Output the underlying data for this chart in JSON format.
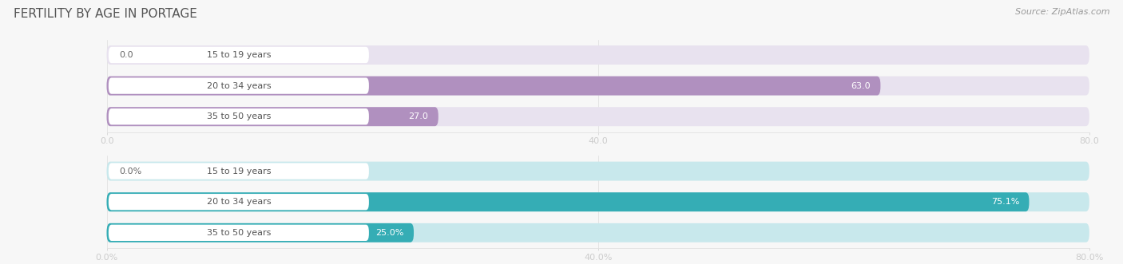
{
  "title": "FERTILITY BY AGE IN PORTAGE",
  "source": "Source: ZipAtlas.com",
  "top_chart": {
    "categories": [
      "15 to 19 years",
      "20 to 34 years",
      "35 to 50 years"
    ],
    "values": [
      0.0,
      63.0,
      27.0
    ],
    "xlim": [
      0,
      80
    ],
    "xticks": [
      0.0,
      40.0,
      80.0
    ],
    "xtick_labels": [
      "0.0",
      "40.0",
      "80.0"
    ],
    "bar_color": "#b090bf",
    "bar_bg_color": "#e8e2ef",
    "label_pill_color": "#ffffff",
    "value_labels": [
      "0.0",
      "63.0",
      "27.0"
    ]
  },
  "bottom_chart": {
    "categories": [
      "15 to 19 years",
      "20 to 34 years",
      "35 to 50 years"
    ],
    "values": [
      0.0,
      75.1,
      25.0
    ],
    "xlim": [
      0,
      80
    ],
    "xticks": [
      0.0,
      40.0,
      80.0
    ],
    "xtick_labels": [
      "0.0%",
      "40.0%",
      "80.0%"
    ],
    "bar_color": "#35adb5",
    "bar_bg_color": "#c8e8ec",
    "label_pill_color": "#ffffff",
    "value_labels": [
      "0.0%",
      "75.1%",
      "25.0%"
    ]
  },
  "bg_color": "#f7f7f7",
  "label_color": "#444444",
  "title_color": "#555555",
  "source_color": "#999999"
}
